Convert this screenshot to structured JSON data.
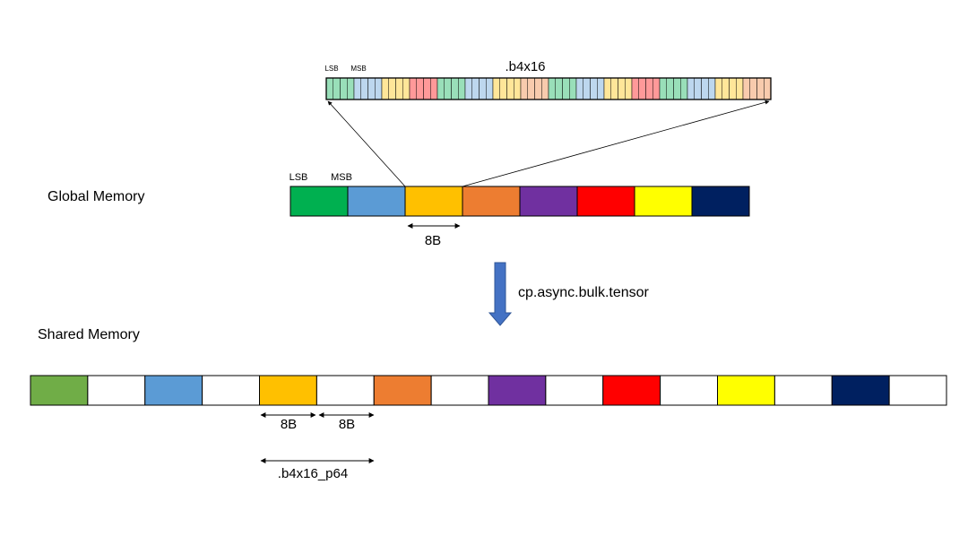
{
  "labels": {
    "global_memory": "Global Memory",
    "shared_memory": "Shared Memory",
    "operation": "cp.async.bulk.tensor",
    "packed_format": ".b4x16",
    "padded_format": ".b4x16_p64",
    "lsb": "LSB",
    "msb": "MSB",
    "size_8b": "8B"
  },
  "colors": {
    "green": "#00b050",
    "green_alt": "#70ad47",
    "blue": "#5b9bd5",
    "orange_yellow": "#ffc000",
    "orange": "#ed7d31",
    "purple": "#7030a0",
    "red": "#ff0000",
    "yellow": "#ffff00",
    "navy": "#002060",
    "empty": "#ffffff",
    "arrow": "#4472c4"
  },
  "global_memory_blocks": [
    "green",
    "blue",
    "orange_yellow",
    "orange",
    "purple",
    "red",
    "yellow",
    "navy"
  ],
  "shared_memory_blocks": [
    "green_alt",
    "empty",
    "blue",
    "empty",
    "orange_yellow",
    "empty",
    "orange",
    "empty",
    "purple",
    "empty",
    "red",
    "empty",
    "yellow",
    "empty",
    "navy",
    "empty"
  ],
  "b4x16_groups": [
    "green",
    "blue",
    "orange_yellow",
    "red",
    "green",
    "blue",
    "orange_yellow",
    "orange",
    "green",
    "blue",
    "orange_yellow",
    "red",
    "green",
    "blue",
    "orange_yellow",
    "orange"
  ],
  "b4x16_cells_per_group": 4
}
